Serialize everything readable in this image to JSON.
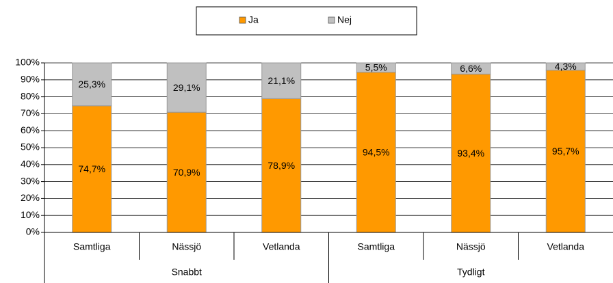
{
  "chart_data": {
    "type": "stacked_bar",
    "groups": [
      {
        "name": "Snabbt",
        "categories": [
          "Samtliga",
          "Nässjö",
          "Vetlanda"
        ]
      },
      {
        "name": "Tydligt",
        "categories": [
          "Samtliga",
          "Nässjö",
          "Vetlanda"
        ]
      }
    ],
    "series": [
      {
        "name": "Ja",
        "color": "#ff9900",
        "values": [
          74.7,
          70.9,
          78.9,
          94.5,
          93.4,
          95.7
        ],
        "value_labels": [
          "74,7%",
          "70,9%",
          "78,9%",
          "94,5%",
          "93,4%",
          "95,7%"
        ]
      },
      {
        "name": "Nej",
        "color": "#c0c0c0",
        "values": [
          25.3,
          29.1,
          21.1,
          5.5,
          6.6,
          4.3
        ],
        "value_labels": [
          "25,3%",
          "29,1%",
          "21,1%",
          "5,5%",
          "6,6%",
          "4,3%"
        ]
      }
    ],
    "ylim": [
      0,
      100
    ],
    "yticks": [
      {
        "value": 0,
        "label": "0%"
      },
      {
        "value": 10,
        "label": "10%"
      },
      {
        "value": 20,
        "label": "20%"
      },
      {
        "value": 30,
        "label": "30%"
      },
      {
        "value": 40,
        "label": "40%"
      },
      {
        "value": 50,
        "label": "50%"
      },
      {
        "value": 60,
        "label": "60%"
      },
      {
        "value": 70,
        "label": "70%"
      },
      {
        "value": 80,
        "label": "80%"
      },
      {
        "value": 90,
        "label": "90%"
      },
      {
        "value": 100,
        "label": "100%"
      }
    ],
    "grid": true,
    "legend": "top"
  }
}
